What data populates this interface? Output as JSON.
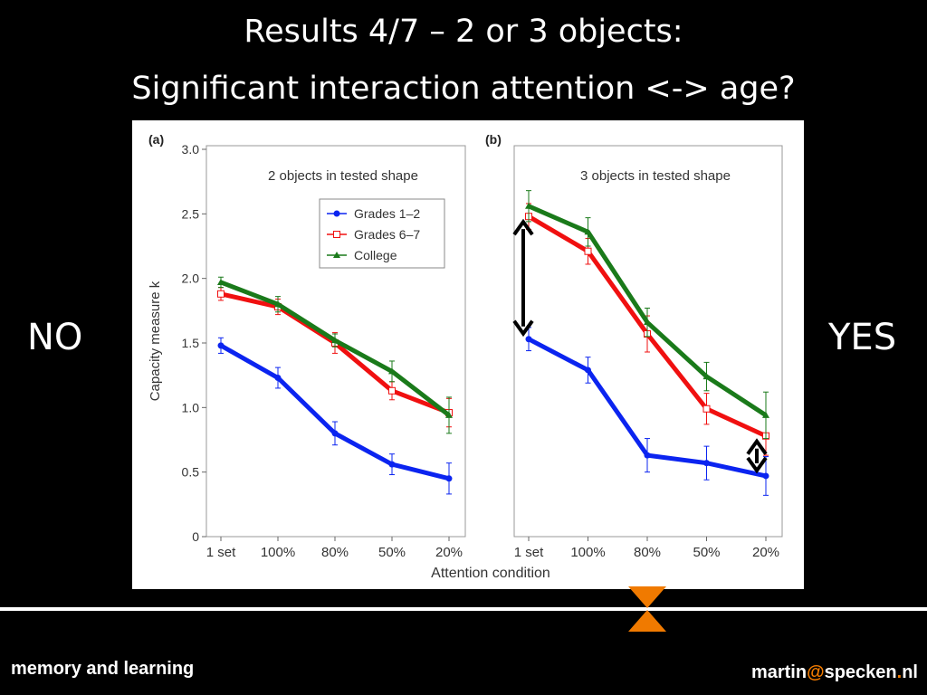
{
  "slide": {
    "title_line1": "Results 4/7 – 2 or 3 objects:",
    "title_line2": "Significant interaction attention <-> age?",
    "left_answer": "NO",
    "right_answer": "YES",
    "footer_left": "memory and learning",
    "footer_right_user": "martin",
    "footer_right_at": "@",
    "footer_right_domain": "specken",
    "footer_right_dot": ".",
    "footer_right_tld": "nl"
  },
  "colors": {
    "grades12": "#0b24f0",
    "grades67": "#f01010",
    "college": "#1a7a1a",
    "accent": "#f07a00"
  },
  "chart_data": [
    {
      "type": "line",
      "panel_label": "(a)",
      "title": "2 objects in tested shape",
      "xlabel": "Attention condition",
      "ylabel": "Capacity measure k",
      "categories": [
        "1 set",
        "100%",
        "80%",
        "50%",
        "20%"
      ],
      "ylim": [
        0,
        3.0
      ],
      "yticks": [
        "0",
        "0.5",
        "1.0",
        "1.5",
        "2.0",
        "2.5",
        "3.0"
      ],
      "legend_position": "top-right",
      "series": [
        {
          "name": "Grades 1–2",
          "values": [
            1.48,
            1.23,
            0.8,
            0.56,
            0.45
          ],
          "errors": [
            0.06,
            0.08,
            0.09,
            0.08,
            0.12
          ]
        },
        {
          "name": "Grades 6–7",
          "values": [
            1.88,
            1.78,
            1.5,
            1.13,
            0.96
          ],
          "errors": [
            0.05,
            0.06,
            0.08,
            0.07,
            0.11
          ]
        },
        {
          "name": "College",
          "values": [
            1.97,
            1.8,
            1.52,
            1.28,
            0.94
          ],
          "errors": [
            0.04,
            0.06,
            0.05,
            0.08,
            0.14
          ]
        }
      ]
    },
    {
      "type": "line",
      "panel_label": "(b)",
      "title": "3 objects in tested shape",
      "xlabel": "Attention condition",
      "ylabel": "",
      "categories": [
        "1 set",
        "100%",
        "80%",
        "50%",
        "20%"
      ],
      "ylim": [
        0,
        3.0
      ],
      "series": [
        {
          "name": "Grades 1–2",
          "values": [
            1.53,
            1.29,
            0.63,
            0.57,
            0.47
          ],
          "errors": [
            0.09,
            0.1,
            0.13,
            0.13,
            0.15
          ]
        },
        {
          "name": "Grades 6–7",
          "values": [
            2.48,
            2.21,
            1.57,
            0.99,
            0.78
          ],
          "errors": [
            0.1,
            0.1,
            0.14,
            0.12,
            0.15
          ]
        },
        {
          "name": "College",
          "values": [
            2.56,
            2.36,
            1.66,
            1.24,
            0.94
          ],
          "errors": [
            0.12,
            0.11,
            0.11,
            0.11,
            0.18
          ]
        }
      ],
      "annotations": [
        "double-arrow at 1 set between Grades 1–2 and Grades 6–7",
        "double-arrow at 20% between Grades 1–2 and Grades 6–7"
      ]
    }
  ]
}
